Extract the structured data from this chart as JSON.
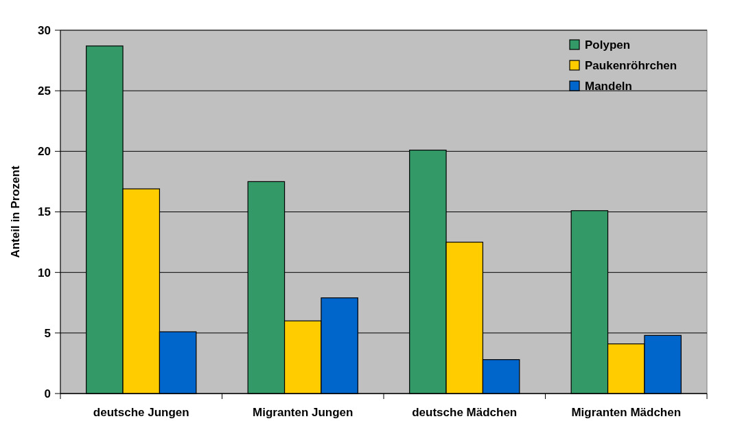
{
  "chart_data": {
    "type": "bar",
    "ylabel": "Anteil in Prozent",
    "categories": [
      "deutsche Jungen",
      "Migranten Jungen",
      "deutsche Mädchen",
      "Migranten Mädchen"
    ],
    "series": [
      {
        "name": "Polypen",
        "color": "#339966",
        "values": [
          28.7,
          17.5,
          20.1,
          15.1
        ]
      },
      {
        "name": "Paukenröhrchen",
        "color": "#ffcc00",
        "values": [
          16.9,
          6.0,
          12.5,
          4.1
        ]
      },
      {
        "name": "Mandeln",
        "color": "#0066cc",
        "values": [
          5.1,
          7.9,
          2.8,
          4.8
        ]
      }
    ],
    "ylim": [
      0,
      30
    ],
    "yticks": [
      0,
      5,
      10,
      15,
      20,
      25,
      30
    ],
    "grid": "y",
    "legend": "top right"
  }
}
